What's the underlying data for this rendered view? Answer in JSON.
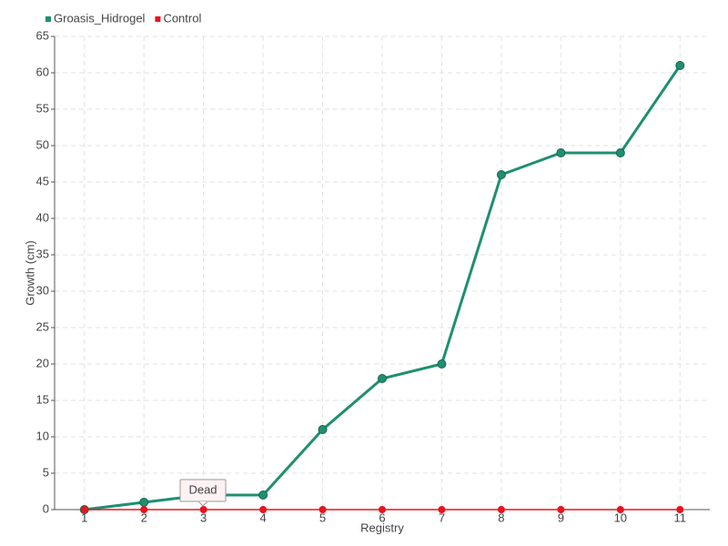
{
  "chart_data": {
    "type": "line",
    "x_label": "Registry",
    "y_label": "Growth (cm)",
    "categories": [
      "1",
      "2",
      "3",
      "4",
      "5",
      "6",
      "7",
      "8",
      "9",
      "10",
      "11"
    ],
    "series": [
      {
        "name": "Groasis_Hidrogel",
        "color": "#1f8f70",
        "values": [
          0,
          1,
          2,
          2,
          11,
          18,
          20,
          46,
          49,
          49,
          61
        ]
      },
      {
        "name": "Control",
        "color": "#e8141c",
        "values": [
          0,
          0,
          0,
          0,
          0,
          0,
          0,
          0,
          0,
          0,
          0
        ]
      }
    ],
    "annotation": "Dead",
    "ylim": [
      0,
      65
    ],
    "yticks": [
      0,
      5,
      10,
      15,
      20,
      25,
      30,
      35,
      40,
      45,
      50,
      55,
      60,
      65
    ],
    "grid": true
  }
}
